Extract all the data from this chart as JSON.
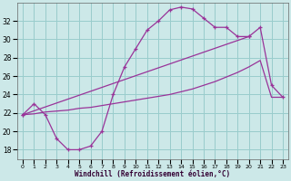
{
  "xlabel": "Windchill (Refroidissement éolien,°C)",
  "bg_color": "#cce8e8",
  "line_color": "#993399",
  "grid_color": "#99cccc",
  "x_ticks": [
    0,
    1,
    2,
    3,
    4,
    5,
    6,
    7,
    8,
    9,
    10,
    11,
    12,
    13,
    14,
    15,
    16,
    17,
    18,
    19,
    20,
    21,
    22,
    23
  ],
  "y_ticks": [
    18,
    20,
    22,
    24,
    26,
    28,
    30,
    32
  ],
  "ylim": [
    17.0,
    34.0
  ],
  "xlim": [
    -0.5,
    23.5
  ],
  "curve1_x": [
    0,
    1,
    2,
    3,
    4,
    5,
    6,
    7,
    8,
    9,
    10,
    11,
    12,
    13,
    14,
    15,
    16,
    17,
    18,
    19,
    20
  ],
  "curve1_y": [
    21.8,
    23.0,
    21.8,
    19.2,
    18.0,
    18.0,
    18.4,
    20.0,
    24.0,
    27.0,
    29.0,
    31.0,
    32.0,
    33.2,
    33.5,
    33.3,
    32.3,
    31.3,
    31.3,
    30.3,
    30.3
  ],
  "curve2_x": [
    0,
    20,
    21,
    22,
    23
  ],
  "curve2_y": [
    21.8,
    30.3,
    31.3,
    25.0,
    23.7
  ],
  "curve3_x": [
    0,
    1,
    2,
    3,
    4,
    5,
    6,
    7,
    8,
    9,
    10,
    11,
    12,
    13,
    14,
    15,
    16,
    17,
    18,
    19,
    20,
    21,
    22,
    23
  ],
  "curve3_y": [
    21.8,
    21.9,
    22.1,
    22.2,
    22.3,
    22.5,
    22.6,
    22.8,
    23.0,
    23.2,
    23.4,
    23.6,
    23.8,
    24.0,
    24.3,
    24.6,
    25.0,
    25.4,
    25.9,
    26.4,
    27.0,
    27.7,
    23.7,
    23.7
  ]
}
